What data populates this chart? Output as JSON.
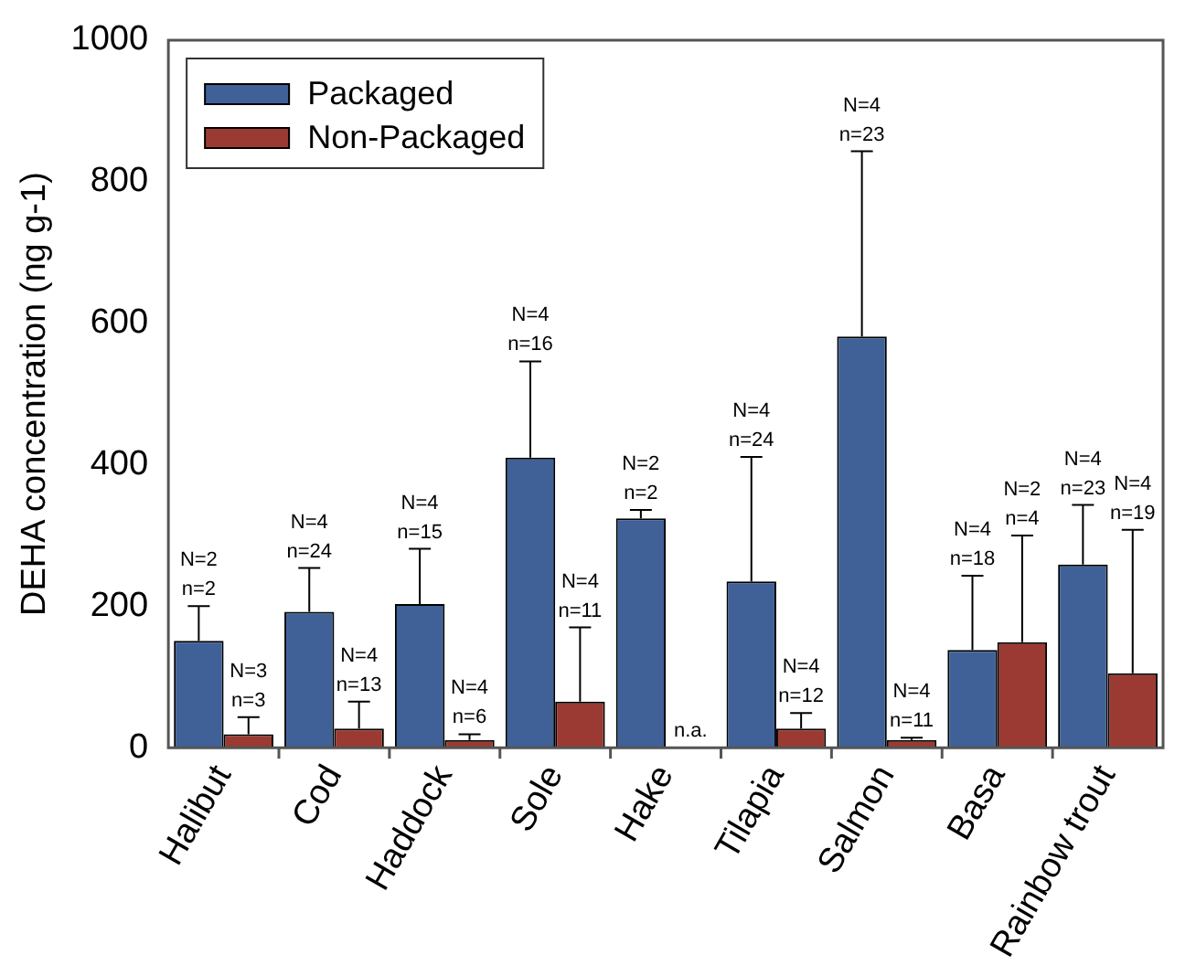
{
  "chart_data": {
    "type": "bar",
    "ylabel": "DEHA concentration (ng g-1)",
    "categories": [
      "Halibut",
      "Cod",
      "Haddock",
      "Sole",
      "Hake",
      "Tilapia",
      "Salmon",
      "Basa",
      "Rainbow trout"
    ],
    "series": [
      {
        "name": "Packaged",
        "color": "#3f6198",
        "values": [
          151,
          192,
          203,
          410,
          324,
          235,
          581,
          138,
          259
        ],
        "errors": [
          [
            151,
            200
          ],
          [
            192,
            254
          ],
          [
            203,
            281
          ],
          [
            410,
            546
          ],
          [
            324,
            336
          ],
          [
            235,
            411
          ],
          [
            581,
            843
          ],
          [
            138,
            243
          ],
          [
            259,
            343
          ]
        ]
      },
      {
        "name": "Non-Packaged",
        "color": "#9b3a32",
        "values": [
          19,
          27,
          11,
          65,
          null,
          27,
          11,
          149,
          105
        ],
        "errors": [
          [
            19,
            43
          ],
          [
            27,
            65
          ],
          [
            11,
            19
          ],
          [
            65,
            170
          ],
          null,
          [
            27,
            49
          ],
          [
            11,
            14
          ],
          [
            149,
            300
          ],
          [
            105,
            308
          ]
        ]
      }
    ],
    "annotations": [
      "N=2\nn=2",
      "N=3\nn=3",
      "N=4\nn=24",
      "N=4\nn=13",
      "N=4\nn=15",
      "N=4\nn=6",
      "N=4\nn=16",
      "N=4\nn=11",
      "N=2\nn=2",
      "n.a.",
      "N=4\nn=24",
      "N=4\nn=12",
      "N=4\nn=23",
      "N=4\nn=11",
      "N=4\nn=18",
      "N=2\nn=4",
      "N=4\nn=23",
      "N=4\nn=19"
    ],
    "ylim": [
      0,
      1000
    ],
    "yticks": [
      0,
      200,
      400,
      600,
      800,
      1000
    ],
    "grid": false,
    "legend": "top left"
  }
}
